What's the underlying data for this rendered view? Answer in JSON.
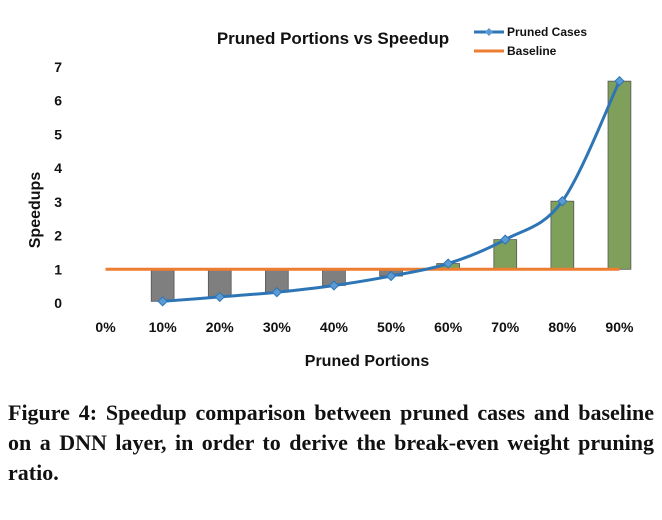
{
  "chart_data": {
    "type": "bar+line",
    "title": "Pruned Portions vs Speedup",
    "xlabel": "Pruned Portions",
    "ylabel": "Speedups",
    "categories": [
      "0%",
      "10%",
      "20%",
      "30%",
      "40%",
      "50%",
      "60%",
      "70%",
      "80%",
      "90%"
    ],
    "ylim": [
      0,
      7
    ],
    "yticks": [
      "0",
      "1",
      "2",
      "3",
      "4",
      "5",
      "6",
      "7"
    ],
    "grid": false,
    "legend_position": "top-right",
    "bar_baseline": 1,
    "bar_colors": {
      "below": "#7f7f7f",
      "above": "#7fa05a"
    },
    "series": [
      {
        "name": "Pruned Cases",
        "kind": "line-markers",
        "color": "#2e75b6",
        "values": [
          null,
          0.05,
          0.18,
          0.32,
          0.52,
          0.8,
          1.17,
          1.88,
          3.02,
          6.58
        ]
      },
      {
        "name": "Baseline",
        "kind": "line",
        "color": "#ed7d31",
        "values": [
          1,
          1,
          1,
          1,
          1,
          1,
          1,
          1,
          1,
          1
        ]
      }
    ]
  },
  "caption": "Figure 4: Speedup comparison between pruned cases and baseline on a DNN layer, in order to derive the break-even weight pruning ratio."
}
